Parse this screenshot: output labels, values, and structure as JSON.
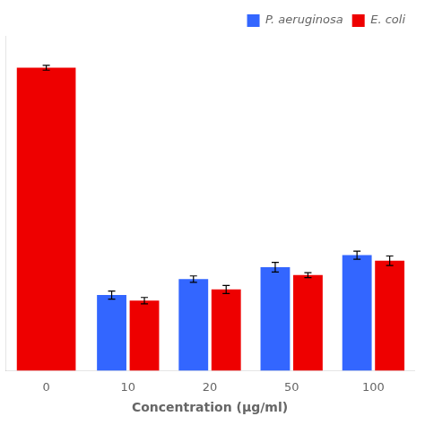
{
  "chart_data": {
    "type": "bar",
    "xlabel": "Concentration (μg/ml)",
    "categories": [
      "0",
      "10",
      "20",
      "50",
      "100"
    ],
    "series": [
      {
        "name": "P. aeruginosa",
        "color": "#3366FF",
        "values": [
          null,
          9.5,
          11.5,
          13.0,
          14.5
        ],
        "errors": [
          null,
          0.5,
          0.4,
          0.6,
          0.5
        ]
      },
      {
        "name": "E. coli",
        "color": "#EE0000",
        "values": [
          38.0,
          8.8,
          10.2,
          12.0,
          13.8
        ],
        "errors": [
          0.3,
          0.4,
          0.5,
          0.3,
          0.6
        ]
      }
    ],
    "ylim": [
      0,
      42
    ],
    "tick_labels": "x",
    "grid": false,
    "legend": "upper right"
  }
}
